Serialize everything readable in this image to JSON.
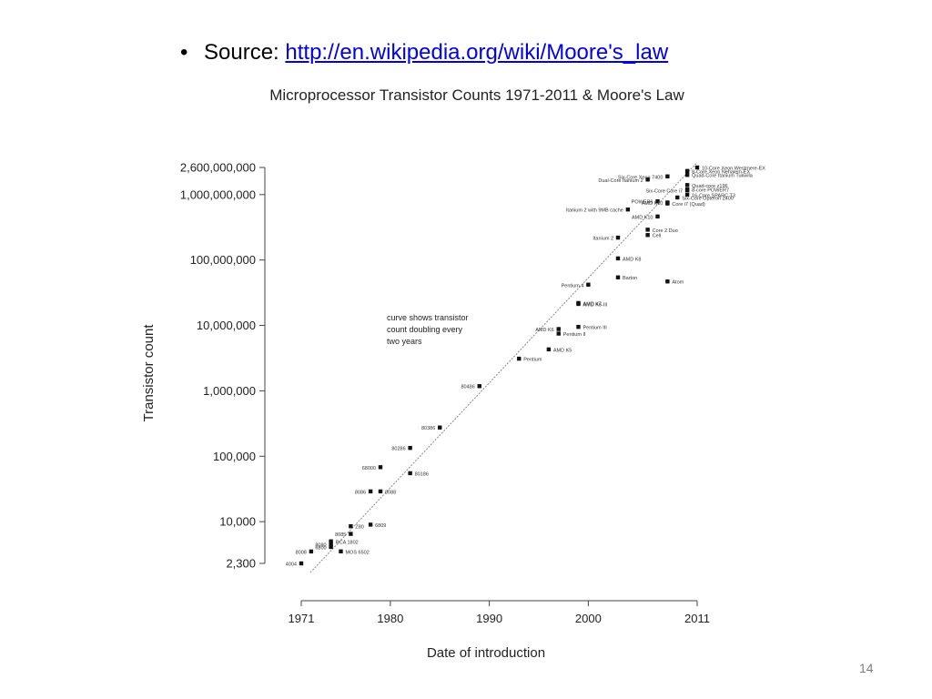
{
  "slide": {
    "bullet": "•",
    "source_label": "Source: ",
    "source_link": "http://en.wikipedia.org/wiki/Moore's_law",
    "page_number": "14"
  },
  "chart_data": {
    "type": "scatter",
    "title": "Microprocessor Transistor Counts 1971-2011 & Moore's Law",
    "xlabel": "Date of introduction",
    "ylabel": "Transistor count",
    "y_scale": "log",
    "xlim": [
      1971,
      2011
    ],
    "ylim": [
      2300,
      2600000000
    ],
    "x_ticks": [
      {
        "value": 1971,
        "label": "1971"
      },
      {
        "value": 1980,
        "label": "1980"
      },
      {
        "value": 1990,
        "label": "1990"
      },
      {
        "value": 2000,
        "label": "2000"
      },
      {
        "value": 2011,
        "label": "2011"
      }
    ],
    "y_ticks": [
      {
        "value": 2600000000,
        "label": "2,600,000,000"
      },
      {
        "value": 1000000000,
        "label": "1,000,000,000"
      },
      {
        "value": 100000000,
        "label": "100,000,000"
      },
      {
        "value": 10000000,
        "label": "10,000,000"
      },
      {
        "value": 1000000,
        "label": "1,000,000"
      },
      {
        "value": 100000,
        "label": "100,000"
      },
      {
        "value": 10000,
        "label": "10,000"
      },
      {
        "value": 2300,
        "label": "2,300"
      }
    ],
    "annotation": [
      "curve shows transistor",
      "count doubling every",
      "two years"
    ],
    "trend_line": {
      "x": [
        1971,
        2011
      ],
      "y": [
        2300,
        2400000000
      ]
    },
    "points": [
      {
        "label": "4004",
        "x": 1971,
        "y": 2300,
        "side": "left"
      },
      {
        "label": "8008",
        "x": 1972,
        "y": 3500,
        "side": "left"
      },
      {
        "label": "8080",
        "x": 1974,
        "y": 4500,
        "side": "left"
      },
      {
        "label": "RCA 1802",
        "x": 1974,
        "y": 5000,
        "side": "right"
      },
      {
        "label": "MOS 6502",
        "x": 1975,
        "y": 3510,
        "side": "right"
      },
      {
        "label": "6800",
        "x": 1974,
        "y": 4100,
        "side": "left"
      },
      {
        "label": "Z80",
        "x": 1976,
        "y": 8500,
        "side": "right"
      },
      {
        "label": "8085",
        "x": 1976,
        "y": 6500,
        "side": "left"
      },
      {
        "label": "6809",
        "x": 1978,
        "y": 9000,
        "side": "right"
      },
      {
        "label": "8086",
        "x": 1978,
        "y": 29000,
        "side": "left"
      },
      {
        "label": "8088",
        "x": 1979,
        "y": 29000,
        "side": "right"
      },
      {
        "label": "80186",
        "x": 1982,
        "y": 55000,
        "side": "right"
      },
      {
        "label": "68000",
        "x": 1979,
        "y": 68000,
        "side": "left"
      },
      {
        "label": "80286",
        "x": 1982,
        "y": 134000,
        "side": "left"
      },
      {
        "label": "80386",
        "x": 1985,
        "y": 275000,
        "side": "left"
      },
      {
        "label": "80486",
        "x": 1989,
        "y": 1180000,
        "side": "left"
      },
      {
        "label": "Pentium",
        "x": 1993,
        "y": 3100000,
        "side": "right"
      },
      {
        "label": "AMD K5",
        "x": 1996,
        "y": 4300000,
        "side": "right"
      },
      {
        "label": "Pentium II",
        "x": 1997,
        "y": 7500000,
        "side": "right"
      },
      {
        "label": "AMD K6",
        "x": 1997,
        "y": 8800000,
        "side": "left"
      },
      {
        "label": "Pentium III",
        "x": 1999,
        "y": 9500000,
        "side": "right"
      },
      {
        "label": "AMD K6-III",
        "x": 1999,
        "y": 21300000,
        "side": "right"
      },
      {
        "label": "AMD K7",
        "x": 1999,
        "y": 22000000,
        "side": "right"
      },
      {
        "label": "Pentium 4",
        "x": 2000,
        "y": 42000000,
        "side": "left"
      },
      {
        "label": "Barton",
        "x": 2003,
        "y": 54300000,
        "side": "right"
      },
      {
        "label": "Atom",
        "x": 2008,
        "y": 47000000,
        "side": "right"
      },
      {
        "label": "AMD K8",
        "x": 2003,
        "y": 105900000,
        "side": "right"
      },
      {
        "label": "Itanium 2",
        "x": 2003,
        "y": 220000000,
        "side": "left"
      },
      {
        "label": "Cell",
        "x": 2006,
        "y": 241000000,
        "side": "right"
      },
      {
        "label": "Core 2 Duo",
        "x": 2006,
        "y": 291000000,
        "side": "right"
      },
      {
        "label": "Core i7 (Quad)",
        "x": 2008,
        "y": 731000000,
        "side": "right"
      },
      {
        "label": "AMD K10",
        "x": 2007,
        "y": 463000000,
        "side": "left"
      },
      {
        "label": "Itanium 2 with 9MB cache",
        "x": 2004,
        "y": 592000000,
        "side": "left"
      },
      {
        "label": "POWER6",
        "x": 2007,
        "y": 789000000,
        "side": "left"
      },
      {
        "label": "AMD K10",
        "x": 2008,
        "y": 758000000,
        "side": "left"
      },
      {
        "label": "Six-Core Opteron 2400",
        "x": 2009,
        "y": 904000000,
        "side": "right"
      },
      {
        "label": "8-Core Xeon Nehalem-EX",
        "x": 2010,
        "y": 2300000000,
        "side": "right"
      },
      {
        "label": "Quad-Core Itanium Tukwila",
        "x": 2010,
        "y": 2000000000,
        "side": "right"
      },
      {
        "label": "Quad-core z196",
        "x": 2010,
        "y": 1400000000,
        "side": "right"
      },
      {
        "label": "8-core POWER7",
        "x": 2010,
        "y": 1200000000,
        "side": "right"
      },
      {
        "label": "10-Core Xeon Westmere-EX",
        "x": 2011,
        "y": 2600000000,
        "side": "right"
      },
      {
        "label": "Six-Core Core i7",
        "x": 2010,
        "y": 1170000000,
        "side": "left"
      },
      {
        "label": "Six-Core Xeon 7400",
        "x": 2008,
        "y": 1900000000,
        "side": "left"
      },
      {
        "label": "Dual-Core Itanium 2",
        "x": 2006,
        "y": 1700000000,
        "side": "left"
      },
      {
        "label": "16-Core SPARC T3",
        "x": 2010,
        "y": 1000000000,
        "side": "right"
      }
    ]
  }
}
